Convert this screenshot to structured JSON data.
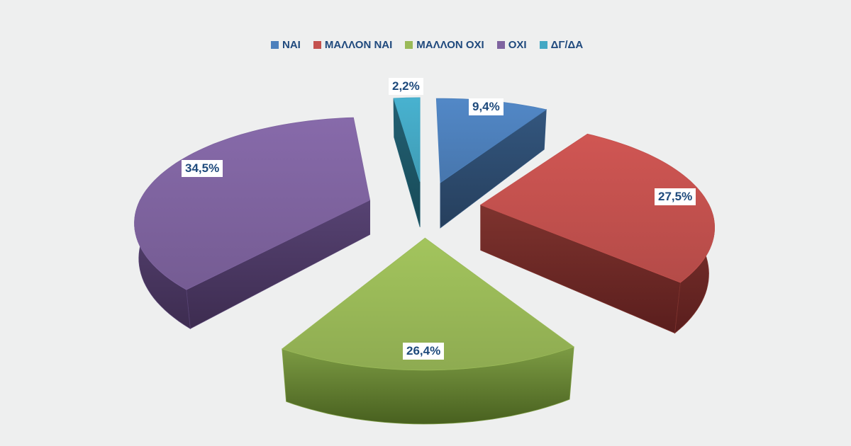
{
  "background_color": "#eeefef",
  "legend": {
    "position": "top",
    "items": [
      {
        "label": "ΝΑΙ",
        "color": "#4d80bc"
      },
      {
        "label": "ΜΑΛΛΟΝ ΝΑΙ",
        "color": "#c4514e"
      },
      {
        "label": "ΜΑΛΛΟΝ ΟΧΙ",
        "color": "#9aba58"
      },
      {
        "label": "ΟΧΙ",
        "color": "#7f64a0"
      },
      {
        "label": "ΔΓ/ΔΑ",
        "color": "#44a8c4"
      }
    ]
  },
  "chart_data": {
    "type": "pie",
    "style": "3d-exploded",
    "labels": [
      "ΝΑΙ",
      "ΜΑΛΛΟΝ ΝΑΙ",
      "ΜΑΛΛΟΝ ΟΧΙ",
      "ΟΧΙ",
      "ΔΓ/ΔΑ"
    ],
    "values": [
      9.4,
      27.5,
      26.4,
      34.5,
      2.2
    ],
    "value_labels": [
      "9,4%",
      "27,5%",
      "26,4%",
      "34,5%",
      "2,2%"
    ],
    "colors": [
      "#4d80bc",
      "#c4514e",
      "#9aba58",
      "#7f64a0",
      "#44a8c4"
    ],
    "side_colors_top": [
      "#33567e",
      "#7e332e",
      "#7d9c44",
      "#574373",
      "#236073"
    ],
    "side_colors_bottom": [
      "#263f5d",
      "#5a1e1d",
      "#48601f",
      "#3d2c50",
      "#174a57"
    ],
    "value_label_text_color": "#1e4a7c",
    "direction": "clockwise",
    "start_angle_deg": 0,
    "legend_position": "top"
  }
}
